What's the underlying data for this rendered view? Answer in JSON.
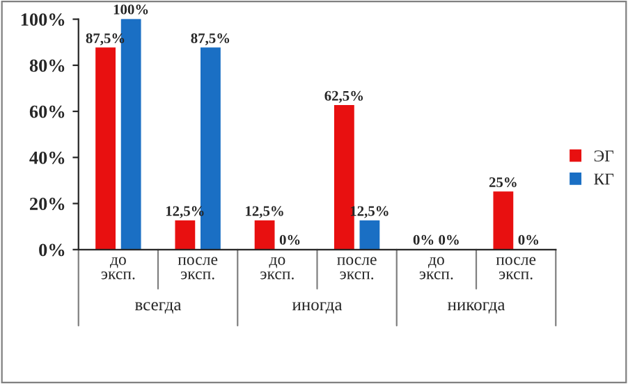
{
  "chart_data": {
    "type": "bar",
    "categories": [
      "до\nэксп.",
      "после\nэксп.",
      "до\nэксп.",
      "после\nэксп.",
      "до\nэксп.",
      "после\nэксп."
    ],
    "annotations": [
      "всегда",
      "иногда",
      "никогда"
    ],
    "series": [
      {
        "name": "ЭГ",
        "color": "#e81010",
        "values": [
          87.5,
          12.5,
          12.5,
          62.5,
          0,
          25
        ],
        "value_labels": [
          "87,5%",
          "12,5%",
          "12,5%",
          "62,5%",
          "0%",
          "25%"
        ]
      },
      {
        "name": "КГ",
        "color": "#1a6fc4",
        "values": [
          100,
          87.5,
          0,
          12.5,
          0,
          0
        ],
        "value_labels": [
          "100%",
          "87,5%",
          "0%",
          "12,5%",
          "0%",
          "0%"
        ]
      }
    ],
    "ylim": [
      0,
      100
    ],
    "yticks": [
      {
        "value": 0,
        "label": "0%"
      },
      {
        "value": 20,
        "label": "20%"
      },
      {
        "value": 40,
        "label": "40%"
      },
      {
        "value": 60,
        "label": "60%"
      },
      {
        "value": 80,
        "label": "80%"
      },
      {
        "value": 100,
        "label": "100%"
      }
    ],
    "grid": false,
    "legend": "right"
  }
}
